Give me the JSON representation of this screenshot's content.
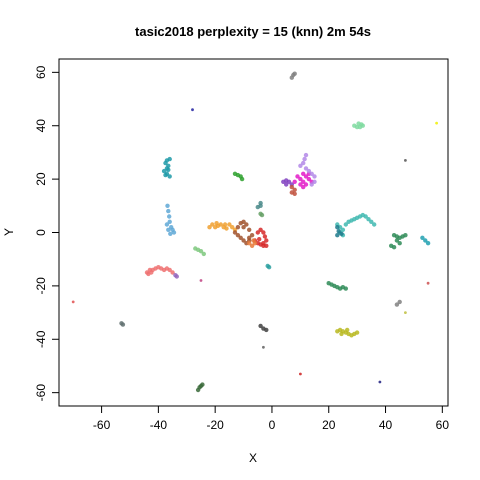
{
  "chart_data": {
    "type": "scatter",
    "title": "tasic2018 perplexity = 15 (knn) 2m 54s",
    "xlabel": "X",
    "ylabel": "Y",
    "xlim": [
      -75,
      62
    ],
    "ylim": [
      -65,
      65
    ],
    "xticks": [
      -60,
      -40,
      -20,
      0,
      20,
      40,
      60
    ],
    "xtick_labels": [
      "-60",
      "-40",
      "-20",
      "0",
      "20",
      "40",
      "60"
    ],
    "yticks": [
      -60,
      -40,
      -20,
      0,
      20,
      40,
      60
    ],
    "ytick_labels": [
      "-60",
      "-40",
      "-20",
      "0",
      "20",
      "40",
      "60"
    ],
    "grid": false,
    "legend": "none",
    "clusters": [
      {
        "color": "#1f9aa8",
        "points": [
          [
            -37,
            27
          ],
          [
            -37.5,
            26
          ],
          [
            -36.5,
            25
          ],
          [
            -37,
            24
          ],
          [
            -38,
            23
          ],
          [
            -37,
            22
          ],
          [
            -36,
            21
          ],
          [
            -36.5,
            23.5
          ],
          [
            -37.5,
            21.5
          ],
          [
            -36,
            27.5
          ]
        ]
      },
      {
        "color": "#5fa8d6",
        "points": [
          [
            -36.8,
            10
          ],
          [
            -36.5,
            8
          ],
          [
            -36.2,
            6
          ],
          [
            -36,
            4
          ],
          [
            -35.5,
            2
          ],
          [
            -35,
            1
          ],
          [
            -34.5,
            0
          ],
          [
            -35.8,
            -0.5
          ],
          [
            -36.5,
            1
          ],
          [
            -37,
            3
          ]
        ]
      },
      {
        "color": "#f0a030",
        "points": [
          [
            -21,
            3
          ],
          [
            -20,
            2
          ],
          [
            -19,
            2.5
          ],
          [
            -18,
            3
          ],
          [
            -17,
            2
          ],
          [
            -16,
            1.5
          ],
          [
            -15,
            3
          ],
          [
            -14,
            2
          ],
          [
            -13,
            1
          ],
          [
            -22,
            2
          ],
          [
            -19.5,
            3.5
          ],
          [
            -16.5,
            3
          ]
        ]
      },
      {
        "color": "#a0522d",
        "points": [
          [
            -13,
            0
          ],
          [
            -12,
            2
          ],
          [
            -11,
            3.5
          ],
          [
            -10,
            4
          ],
          [
            -9,
            3
          ],
          [
            -8,
            1
          ],
          [
            -7,
            -1
          ],
          [
            -8,
            -3
          ],
          [
            -9,
            -4
          ],
          [
            -10,
            -3
          ],
          [
            -11,
            -2
          ],
          [
            -12,
            -1
          ],
          [
            -10,
            2
          ],
          [
            -8,
            -2
          ]
        ]
      },
      {
        "color": "#d62828",
        "points": [
          [
            -6,
            -3
          ],
          [
            -5,
            -4
          ],
          [
            -4,
            -4.5
          ],
          [
            -3,
            -4
          ],
          [
            -2,
            -3
          ],
          [
            -2.5,
            -1.5
          ],
          [
            -3,
            0
          ],
          [
            -4,
            1
          ],
          [
            -5,
            0
          ],
          [
            -3,
            -5
          ],
          [
            -4.5,
            -2.5
          ],
          [
            -2,
            -5
          ]
        ]
      },
      {
        "color": "#e87a3a",
        "points": [
          [
            -7,
            -5
          ],
          [
            -6,
            -4
          ],
          [
            -8,
            -4
          ],
          [
            -6.5,
            -3
          ]
        ]
      },
      {
        "color": "#ee7070",
        "points": [
          [
            -44,
            -15
          ],
          [
            -43,
            -14
          ],
          [
            -42,
            -14
          ],
          [
            -41,
            -13.5
          ],
          [
            -40,
            -13
          ],
          [
            -39,
            -13.5
          ],
          [
            -38,
            -14
          ],
          [
            -37,
            -13.5
          ],
          [
            -36,
            -14
          ],
          [
            -43.5,
            -15.5
          ],
          [
            -42.5,
            -15
          ],
          [
            -35,
            -15
          ]
        ]
      },
      {
        "color": "#9467bd",
        "points": [
          [
            -34,
            -16
          ],
          [
            -33.5,
            -16.5
          ]
        ]
      },
      {
        "color": "#e31ac8",
        "points": [
          [
            9,
            21
          ],
          [
            10,
            20
          ],
          [
            11,
            19
          ],
          [
            12,
            18
          ],
          [
            11,
            17
          ],
          [
            10,
            18
          ],
          [
            12,
            21
          ],
          [
            13,
            20
          ],
          [
            14,
            19
          ],
          [
            13,
            22
          ],
          [
            11,
            22
          ],
          [
            8,
            19
          ]
        ]
      },
      {
        "color": "#8040c0",
        "points": [
          [
            4,
            19
          ],
          [
            5,
            18
          ],
          [
            6,
            19
          ],
          [
            7,
            18
          ],
          [
            5,
            19.5
          ]
        ]
      },
      {
        "color": "#b388e8",
        "points": [
          [
            10,
            25
          ],
          [
            11,
            26
          ],
          [
            11.5,
            27.5
          ],
          [
            12,
            29
          ],
          [
            12,
            24
          ],
          [
            13,
            23
          ],
          [
            14,
            22
          ],
          [
            15,
            21
          ],
          [
            15,
            19
          ],
          [
            14,
            18
          ]
        ]
      },
      {
        "color": "#c0503c",
        "points": [
          [
            7,
            17
          ],
          [
            8,
            16
          ],
          [
            7,
            15
          ],
          [
            8,
            14.5
          ]
        ]
      },
      {
        "color": "#3fb8b0",
        "points": [
          [
            23,
            3
          ],
          [
            24,
            2
          ],
          [
            25,
            1
          ],
          [
            26,
            3
          ],
          [
            27,
            4
          ],
          [
            28,
            4.5
          ],
          [
            29,
            5
          ],
          [
            30,
            5.5
          ],
          [
            31,
            6
          ],
          [
            32,
            6.5
          ],
          [
            33,
            6
          ],
          [
            34,
            5
          ],
          [
            35,
            4
          ],
          [
            36,
            3
          ],
          [
            24,
            0
          ],
          [
            25,
            -1
          ]
        ]
      },
      {
        "color": "#1f7a8c",
        "points": [
          [
            23,
            2
          ],
          [
            23.5,
            0.5
          ],
          [
            24.5,
            -0.5
          ],
          [
            23,
            -1
          ]
        ]
      },
      {
        "color": "#2ca02c",
        "points": [
          [
            -13,
            22
          ],
          [
            -12,
            21.5
          ],
          [
            -11,
            21
          ],
          [
            -10.5,
            20
          ]
        ]
      },
      {
        "color": "#4a8a8a",
        "points": [
          [
            -4,
            11
          ],
          [
            -4,
            10
          ],
          [
            -5,
            9.5
          ]
        ]
      },
      {
        "color": "#66a066",
        "points": [
          [
            -4,
            7
          ],
          [
            -3.5,
            6.5
          ]
        ]
      },
      {
        "color": "#7ec87e",
        "points": [
          [
            -27,
            -6
          ],
          [
            -26,
            -6.5
          ],
          [
            -25,
            -7
          ],
          [
            -24,
            -8
          ]
        ]
      },
      {
        "color": "#2ca0a0",
        "points": [
          [
            -1,
            -13
          ],
          [
            -1.5,
            -12.5
          ]
        ]
      },
      {
        "color": "#7fdba0",
        "points": [
          [
            29,
            40
          ],
          [
            30,
            39.5
          ],
          [
            31,
            39.5
          ],
          [
            32,
            40
          ],
          [
            31.5,
            40.5
          ],
          [
            30.5,
            40.8
          ]
        ]
      },
      {
        "color": "#808080",
        "points": [
          [
            7,
            58
          ],
          [
            7.5,
            59
          ],
          [
            8,
            59.5
          ]
        ]
      },
      {
        "color": "#2020a0",
        "points": [
          [
            -28,
            46
          ]
        ]
      },
      {
        "color": "#f0f000",
        "points": [
          [
            58,
            41
          ]
        ]
      },
      {
        "color": "#555555",
        "points": [
          [
            47,
            27
          ]
        ]
      },
      {
        "color": "#2e8b57",
        "points": [
          [
            43,
            -1
          ],
          [
            44,
            -1.5
          ],
          [
            45,
            -2
          ],
          [
            46,
            -1.5
          ],
          [
            47,
            -1
          ],
          [
            44,
            -3
          ],
          [
            45,
            -4
          ],
          [
            42,
            -5
          ],
          [
            43,
            -5.5
          ]
        ]
      },
      {
        "color": "#20a0b0",
        "points": [
          [
            53,
            -2
          ],
          [
            54,
            -3
          ],
          [
            55,
            -4
          ]
        ]
      },
      {
        "color": "#2e8b57",
        "points": [
          [
            20,
            -19
          ],
          [
            21,
            -19.5
          ],
          [
            22,
            -20
          ],
          [
            23,
            -20.5
          ],
          [
            24,
            -21
          ],
          [
            25,
            -20.5
          ],
          [
            26,
            -21
          ]
        ]
      },
      {
        "color": "#b8b820",
        "points": [
          [
            23,
            -37
          ],
          [
            24,
            -36.5
          ],
          [
            25,
            -37
          ],
          [
            26,
            -37.5
          ],
          [
            27,
            -38
          ],
          [
            28,
            -38.5
          ],
          [
            29,
            -38
          ],
          [
            30,
            -37.5
          ],
          [
            24.5,
            -38
          ],
          [
            26.5,
            -36.5
          ]
        ]
      },
      {
        "color": "#c04080",
        "points": [
          [
            -25,
            -18
          ]
        ]
      },
      {
        "color": "#e05050",
        "points": [
          [
            -70,
            -26
          ]
        ]
      },
      {
        "color": "#607070",
        "points": [
          [
            -53,
            -34
          ],
          [
            -52.5,
            -34.5
          ]
        ]
      },
      {
        "color": "#404040",
        "points": [
          [
            -4,
            -35
          ],
          [
            -3,
            -36
          ],
          [
            -2,
            -36.5
          ]
        ]
      },
      {
        "color": "#606060",
        "points": [
          [
            -3,
            -43
          ]
        ]
      },
      {
        "color": "#808080",
        "points": [
          [
            44,
            -27
          ],
          [
            45,
            -26
          ]
        ]
      },
      {
        "color": "#c0c040",
        "points": [
          [
            47,
            -30
          ]
        ]
      },
      {
        "color": "#cc5050",
        "points": [
          [
            55,
            -19
          ]
        ]
      },
      {
        "color": "#cc2020",
        "points": [
          [
            10,
            -53
          ]
        ]
      },
      {
        "color": "#202080",
        "points": [
          [
            38,
            -56
          ]
        ]
      },
      {
        "color": "#3a6a3a",
        "points": [
          [
            -26,
            -59
          ],
          [
            -25.5,
            -58
          ],
          [
            -25,
            -57.5
          ],
          [
            -24.5,
            -57
          ]
        ]
      }
    ]
  }
}
